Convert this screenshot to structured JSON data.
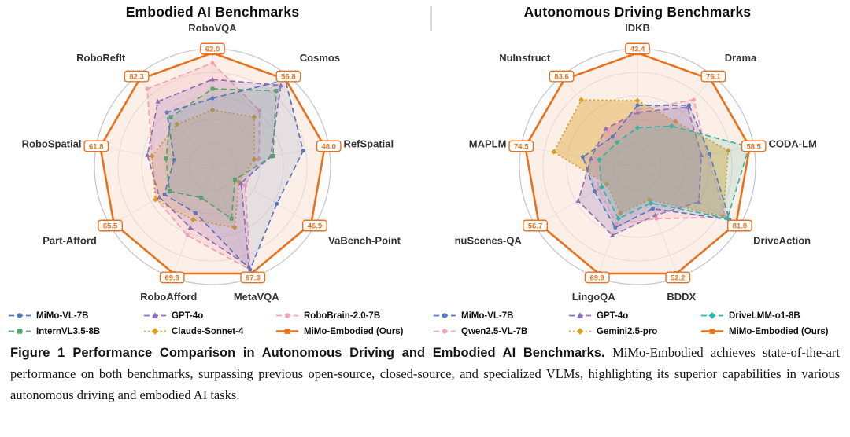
{
  "caption": {
    "label": "Figure 1",
    "heading": "Performance Comparison in Autonomous Driving and Embodied AI Benchmarks.",
    "body": "MiMo-Embodied achieves state-of-the-art performance on both benchmarks, surpassing previous open-source, closed-source, and specialized VLMs, highlighting its superior capabilities in various autonomous driving and embodied AI tasks."
  },
  "colors": {
    "ours_orange": "#E8711C",
    "blue": "#4C78C8",
    "green": "#4FAA6D",
    "purple": "#8B6FC0",
    "gold": "#DCA21C",
    "pink": "#F5A3C0",
    "teal": "#27BBAD"
  },
  "chart_data": [
    {
      "type": "radar",
      "title": "Embodied AI Benchmarks",
      "grid": true,
      "legend_position": "bottom",
      "radial_scale": "normalized, 1.0 = outer ring (best score per axis)",
      "r_domain": [
        0,
        1
      ],
      "axes": [
        "RoboVQA",
        "Cosmos",
        "RefSpatial",
        "VaBench-Point",
        "MetaVQA",
        "RoboAfford",
        "Part-Afford",
        "RoboSpatial",
        "RoboRefIt"
      ],
      "series": [
        {
          "name": "RoboBrain-2.0-7B",
          "color": "#F5A3C0",
          "marker": "circle",
          "line": "dashed",
          "fill_opacity": 0.22,
          "r": [
            0.88,
            0.62,
            0.4,
            0.32,
            0.93,
            0.62,
            0.55,
            0.52,
            0.86
          ]
        },
        {
          "name": "Claude-Sonnet-4",
          "color": "#DCA21C",
          "marker": "diamond",
          "line": "dotted",
          "fill_opacity": 0.16,
          "r": [
            0.48,
            0.55,
            0.36,
            0.26,
            0.55,
            0.48,
            0.56,
            0.52,
            0.47
          ]
        },
        {
          "name": "GPT-4o",
          "color": "#8B6FC0",
          "marker": "triangle",
          "line": "dashed",
          "fill_opacity": 0.18,
          "r": [
            0.74,
            0.9,
            0.5,
            0.28,
            0.9,
            0.55,
            0.52,
            0.56,
            0.72
          ]
        },
        {
          "name": "InternVL3.5-8B",
          "color": "#4FAA6D",
          "marker": "square",
          "line": "dashed",
          "fill_opacity": 0.13,
          "r": [
            0.66,
            0.84,
            0.52,
            0.22,
            0.47,
            0.28,
            0.42,
            0.4,
            0.55
          ]
        },
        {
          "name": "MiMo-VL-7B",
          "color": "#4C78C8",
          "marker": "circle",
          "line": "dashed",
          "fill_opacity": 0.13,
          "r": [
            0.58,
            0.96,
            0.78,
            0.63,
            0.93,
            0.42,
            0.47,
            0.33,
            0.6
          ]
        },
        {
          "name": "MiMo-Embodied (Ours)",
          "color": "#E8711C",
          "marker": "square",
          "line": "solid",
          "fill_opacity": 0.09,
          "is_ours": true,
          "r": [
            0.965,
            0.965,
            0.965,
            0.965,
            0.965,
            0.965,
            0.965,
            0.965,
            0.965
          ],
          "values": [
            62.0,
            56.8,
            48.0,
            46.9,
            67.3,
            69.8,
            65.5,
            61.8,
            82.3
          ],
          "labels": [
            "62.0",
            "56.8",
            "48.0",
            "46.9",
            "67.3",
            "69.8",
            "65.5",
            "61.8",
            "82.3"
          ]
        }
      ],
      "legend_rows": [
        [
          "MiMo-VL-7B",
          "GPT-4o",
          "RoboBrain-2.0-7B"
        ],
        [
          "InternVL3.5-8B",
          "Claude-Sonnet-4",
          "MiMo-Embodied (Ours)"
        ]
      ]
    },
    {
      "type": "radar",
      "title": "Autonomous Driving Benchmarks",
      "grid": true,
      "legend_position": "bottom",
      "radial_scale": "normalized, 1.0 = outer ring (best score per axis)",
      "r_domain": [
        0,
        1
      ],
      "axes": [
        "IDKB",
        "Drama",
        "CODA-LM",
        "DriveAction",
        "BDDX",
        "LingoQA",
        "nuScenes-QA",
        "MAPLM",
        "NuInstruct"
      ],
      "series": [
        {
          "name": "Gemini2.5-pro",
          "color": "#DCA21C",
          "marker": "diamond",
          "line": "dotted",
          "fill_opacity": 0.38,
          "r": [
            0.56,
            0.5,
            0.78,
            0.84,
            0.3,
            0.42,
            0.3,
            0.72,
            0.74
          ]
        },
        {
          "name": "GPT-4o",
          "color": "#8B6FC0",
          "marker": "triangle",
          "line": "dashed",
          "fill_opacity": 0.25,
          "r": [
            0.46,
            0.66,
            0.55,
            0.6,
            0.44,
            0.62,
            0.58,
            0.4,
            0.42
          ]
        },
        {
          "name": "Qwen2.5-VL-7B",
          "color": "#F5A3C0",
          "marker": "circle",
          "line": "dashed",
          "fill_opacity": 0.16,
          "r": [
            0.48,
            0.74,
            0.6,
            0.86,
            0.47,
            0.52,
            0.38,
            0.36,
            0.38
          ]
        },
        {
          "name": "MiMo-VL-7B",
          "color": "#4C78C8",
          "marker": "circle",
          "line": "dashed",
          "fill_opacity": 0.13,
          "r": [
            0.52,
            0.68,
            0.62,
            0.9,
            0.38,
            0.55,
            0.42,
            0.47,
            0.33
          ]
        },
        {
          "name": "DriveLMM-o1-8B",
          "color": "#27BBAD",
          "marker": "diamond",
          "line": "dashed",
          "fill_opacity": 0.15,
          "r": [
            0.33,
            0.45,
            0.96,
            0.88,
            0.33,
            0.47,
            0.35,
            0.33,
            0.27
          ]
        },
        {
          "name": "MiMo-Embodied (Ours)",
          "color": "#E8711C",
          "marker": "square",
          "line": "solid",
          "fill_opacity": 0.09,
          "is_ours": true,
          "r": [
            0.965,
            0.965,
            0.965,
            0.965,
            0.965,
            0.965,
            0.965,
            0.965,
            0.965
          ],
          "values": [
            43.4,
            76.1,
            58.5,
            81.0,
            52.2,
            69.9,
            56.7,
            74.5,
            83.6
          ],
          "labels": [
            "43.4",
            "76.1",
            "58.5",
            "81.0",
            "52.2",
            "69.9",
            "56.7",
            "74.5",
            "83.6"
          ]
        }
      ],
      "legend_rows": [
        [
          "MiMo-VL-7B",
          "GPT-4o",
          "DriveLMM-o1-8B"
        ],
        [
          "Qwen2.5-VL-7B",
          "Gemini2.5-pro",
          "MiMo-Embodied (Ours)"
        ]
      ]
    }
  ]
}
